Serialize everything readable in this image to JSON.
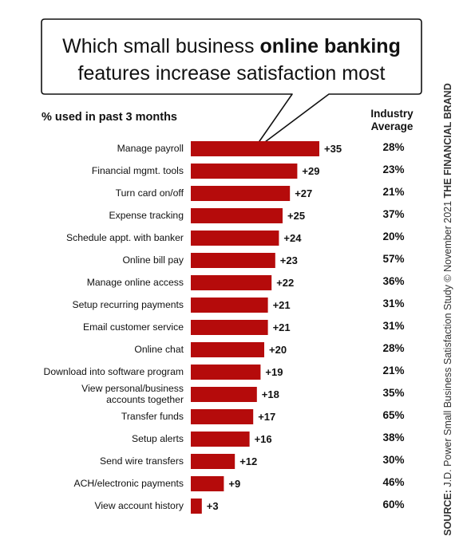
{
  "title": {
    "line1_pre": "Which small business ",
    "line1_bold": "online banking",
    "line2": "features increase satisfaction most"
  },
  "subtitle": "% used in past 3 months",
  "column_header": {
    "line1": "Industry",
    "line2": "Average"
  },
  "side_note": {
    "source_label": "SOURCE:",
    "source_text": " J.D. Power Small Business Satisfaction Study © November 2021 ",
    "brand": "THE FINANCIAL BRAND"
  },
  "colors": {
    "bar": "#b50b0b",
    "text": "#111111"
  },
  "chart_data": {
    "type": "bar",
    "orientation": "horizontal",
    "categories": [
      "Manage payroll",
      "Financial mgmt. tools",
      "Turn card on/off",
      "Expense tracking",
      "Schedule appt. with banker",
      "Online bill pay",
      "Manage online access",
      "Setup recurring payments",
      "Email customer service",
      "Online chat",
      "Download into software program",
      "View personal/business accounts together",
      "Transfer funds",
      "Setup alerts",
      "Send wire transfers",
      "ACH/electronic payments",
      "View account history"
    ],
    "category_lines": [
      [
        "Manage payroll"
      ],
      [
        "Financial mgmt. tools"
      ],
      [
        "Turn card on/off"
      ],
      [
        "Expense tracking"
      ],
      [
        "Schedule appt. with banker"
      ],
      [
        "Online bill pay"
      ],
      [
        "Manage online access"
      ],
      [
        "Setup recurring payments"
      ],
      [
        "Email customer service"
      ],
      [
        "Online chat"
      ],
      [
        "Download into software program"
      ],
      [
        "View personal/business",
        "accounts together"
      ],
      [
        "Transfer funds"
      ],
      [
        "Setup alerts"
      ],
      [
        "Send wire transfers"
      ],
      [
        "ACH/electronic payments"
      ],
      [
        "View account history"
      ]
    ],
    "values": [
      35,
      29,
      27,
      25,
      24,
      23,
      22,
      21,
      21,
      20,
      19,
      18,
      17,
      16,
      12,
      9,
      3
    ],
    "value_labels": [
      "+35",
      "+29",
      "+27",
      "+25",
      "+24",
      "+23",
      "+22",
      "+21",
      "+21",
      "+20",
      "+19",
      "+18",
      "+17",
      "+16",
      "+12",
      "+9",
      "+3"
    ],
    "industry_average": [
      "28%",
      "23%",
      "21%",
      "37%",
      "20%",
      "57%",
      "36%",
      "31%",
      "31%",
      "28%",
      "21%",
      "35%",
      "65%",
      "38%",
      "30%",
      "46%",
      "60%"
    ],
    "title": "Which small business online banking features increase satisfaction most",
    "xlabel": "",
    "ylabel": "% used in past 3 months",
    "grid": false,
    "legend": "none"
  }
}
